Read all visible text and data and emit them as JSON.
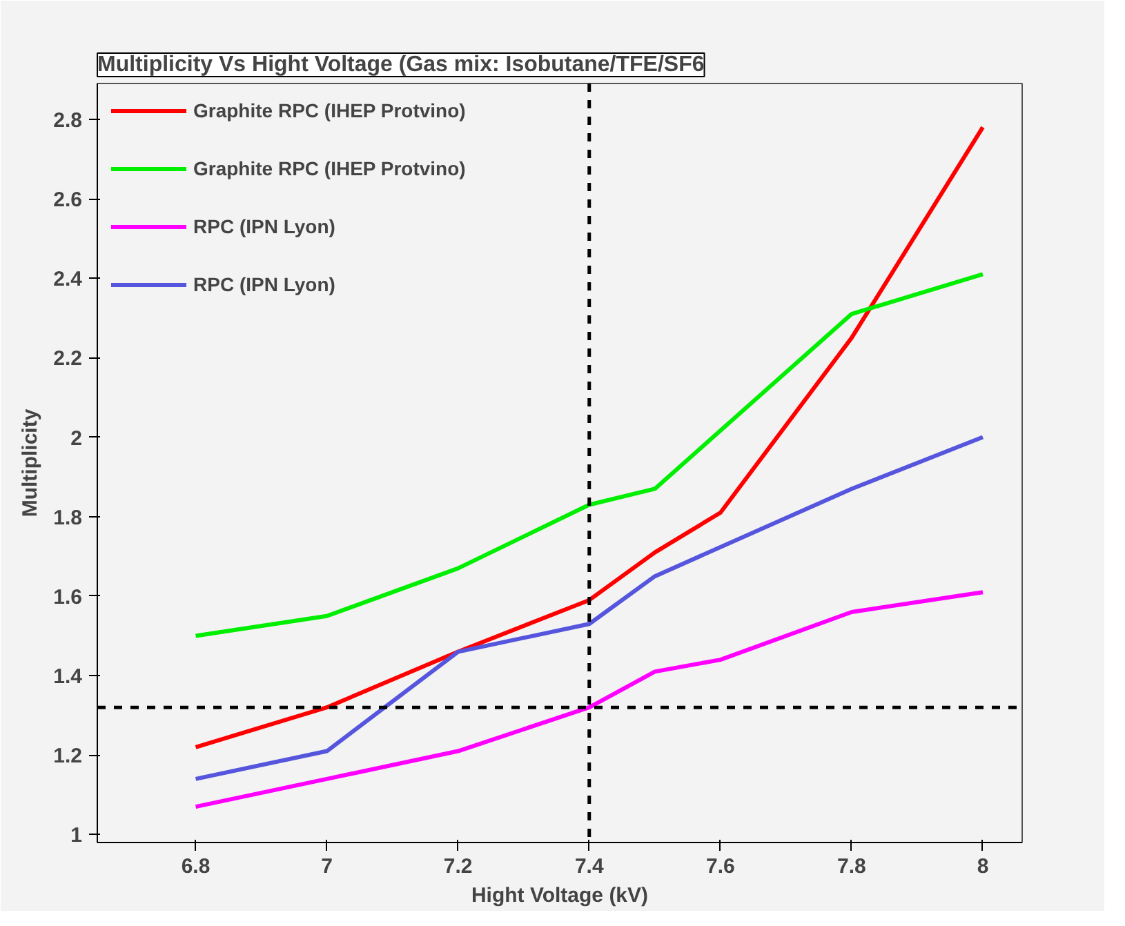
{
  "chart_data": {
    "type": "line",
    "title": "Multiplicity Vs Hight Voltage (Gas mix: Isobutane/TFE/SF6",
    "xlabel": "Hight Voltage (kV)",
    "ylabel": "Multiplicity",
    "xlim": [
      6.65,
      8.06
    ],
    "ylim": [
      0.98,
      2.89
    ],
    "xticks": [
      6.8,
      7,
      7.2,
      7.4,
      7.6,
      7.8,
      8
    ],
    "yticks": [
      1,
      1.2,
      1.4,
      1.6,
      1.8,
      2,
      2.2,
      2.4,
      2.6,
      2.8
    ],
    "grid": false,
    "legend": "top left",
    "marker": "none",
    "line_style": "solid",
    "series": [
      {
        "name": "Graphite RPC (IHEP Protvino)",
        "color": "#ff0000",
        "x": [
          6.8,
          7,
          7.2,
          7.4,
          7.5,
          7.6,
          7.8,
          8
        ],
        "values": [
          1.22,
          1.32,
          1.46,
          1.59,
          1.71,
          1.81,
          2.25,
          2.78
        ]
      },
      {
        "name": "Graphite RPC (IHEP Protvino)",
        "color": "#00ee00",
        "x": [
          6.8,
          7,
          7.2,
          7.4,
          7.5,
          7.8,
          8
        ],
        "values": [
          1.5,
          1.55,
          1.67,
          1.83,
          1.87,
          2.31,
          2.41
        ]
      },
      {
        "name": "RPC (IPN Lyon)",
        "color": "#ff00ff",
        "x": [
          6.8,
          7,
          7.2,
          7.4,
          7.5,
          7.6,
          7.8,
          8
        ],
        "values": [
          1.07,
          1.14,
          1.21,
          1.32,
          1.41,
          1.44,
          1.56,
          1.61
        ]
      },
      {
        "name": "RPC (IPN Lyon)",
        "color": "#5555dd",
        "x": [
          6.8,
          7,
          7.2,
          7.4,
          7.5,
          7.8,
          8
        ],
        "values": [
          1.14,
          1.21,
          1.46,
          1.53,
          1.65,
          1.87,
          2.0
        ]
      }
    ],
    "ref_lines": [
      {
        "axis": "x",
        "value": 7.4,
        "label": null,
        "color": "#000000",
        "line_style": "dashed"
      },
      {
        "axis": "y",
        "value": 1.32,
        "label": null,
        "color": "#000000",
        "line_style": "dashed"
      }
    ]
  }
}
